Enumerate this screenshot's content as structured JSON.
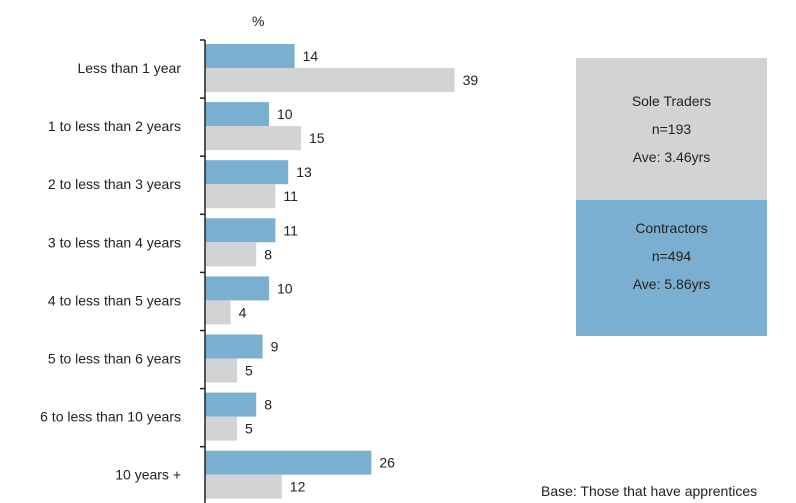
{
  "chart_data": {
    "type": "bar",
    "orientation": "horizontal",
    "unit_label": "%",
    "categories": [
      "Less than 1 year",
      "1 to less than 2 years",
      "2 to less than 3 years",
      "3 to less than 4 years",
      "4 to less than 5 years",
      "5 to less than 6 years",
      "6 to less than 10 years",
      "10 years +"
    ],
    "series": [
      {
        "name": "Contractors",
        "color": "#7aafd2",
        "values": [
          14,
          10,
          13,
          11,
          10,
          9,
          8,
          26
        ]
      },
      {
        "name": "Sole Traders",
        "color": "#d2d3d5",
        "values": [
          39,
          15,
          11,
          8,
          4,
          5,
          5,
          12
        ]
      }
    ],
    "grid": false
  },
  "legend": {
    "sole_traders": {
      "title": "Sole Traders",
      "n": "n=193",
      "ave": "Ave: 3.46yrs",
      "color": "#d2d3d5"
    },
    "contractors": {
      "title": "Contractors",
      "n": "n=494",
      "ave": "Ave: 5.86yrs",
      "color": "#7aafd2"
    }
  },
  "note": "Base: Those that have apprentices"
}
